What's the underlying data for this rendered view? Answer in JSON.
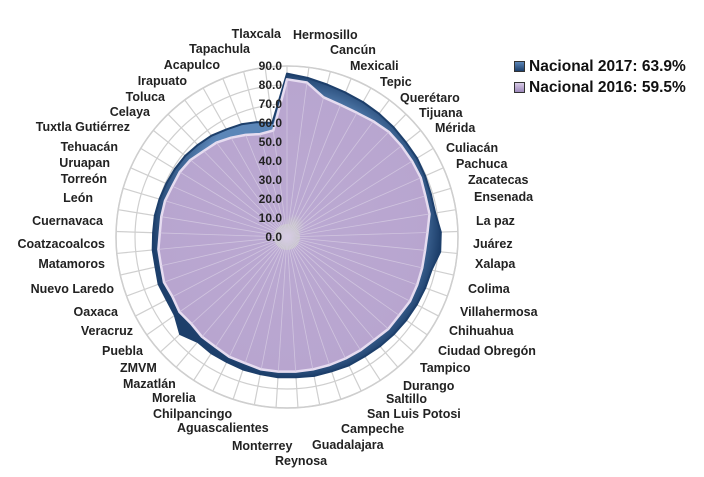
{
  "chart_data": {
    "type": "radar",
    "title": "",
    "categories": [
      "Tlaxcala",
      "Hermosillo",
      "Cancún",
      "Mexicali",
      "Tepic",
      "Querétaro",
      "Tijuana",
      "Mérida",
      "Culiacán",
      "Pachuca",
      "Zacatecas",
      "Ensenada",
      "La paz",
      "Juárez",
      "Xalapa",
      "Colima",
      "Villahermosa",
      "Chihuahua",
      "Ciudad Obregón",
      "Tampico",
      "Durango",
      "Saltillo",
      "San Luis Potosi",
      "Campeche",
      "Guadalajara",
      "Reynosa",
      "Monterrey",
      "Aguascalientes",
      "Chilpancingo",
      "Morelia",
      "Mazatlán",
      "ZMVM",
      "Puebla",
      "Veracruz",
      "Oaxaca",
      "Nuevo Laredo",
      "Matamoros",
      "Coatzacoalcos",
      "Cuernavaca",
      "León",
      "Torreón",
      "Uruapan",
      "Tehuacán",
      "Tuxtla Gutiérrez",
      "Celaya",
      "Toluca",
      "Irapuato",
      "Acapulco",
      "Tapachula"
    ],
    "series": [
      {
        "name": "Nacional 2017: 63.9%",
        "color": "#2e5a8c",
        "values": [
          86,
          84.5,
          83,
          82,
          81.5,
          81,
          80.5,
          80,
          80,
          79.5,
          79,
          79,
          81,
          81,
          78,
          77.5,
          77,
          76.5,
          76,
          75.5,
          75,
          75,
          74.5,
          74.5,
          74,
          74,
          73.5,
          73.5,
          73,
          73,
          72.5,
          76,
          72,
          71.5,
          72,
          71,
          71,
          70.5,
          70.5,
          70,
          69.5,
          69,
          68.5,
          67.5,
          66.5,
          65,
          64,
          62.5,
          60.5
        ]
      },
      {
        "name": "Nacional 2016: 59.5%",
        "color": "#bba9d2",
        "values": [
          83,
          82,
          76,
          75,
          75,
          76,
          77,
          77,
          77,
          77,
          76,
          76,
          74,
          73,
          73,
          73,
          73,
          72,
          72,
          71,
          71,
          71,
          71,
          71,
          71,
          71,
          71,
          70,
          70,
          69,
          69,
          68,
          69,
          68,
          69,
          68,
          68,
          67,
          67,
          67,
          66,
          66,
          65,
          63,
          62,
          60,
          58,
          56,
          56.5
        ]
      }
    ],
    "rlim": [
      0,
      90
    ],
    "r_ticks": [
      "0.0",
      "10.0",
      "20.0",
      "30.0",
      "40.0",
      "50.0",
      "60.0",
      "70.0",
      "80.0",
      "90.0"
    ],
    "grid": true,
    "legend_position": "top-right"
  }
}
